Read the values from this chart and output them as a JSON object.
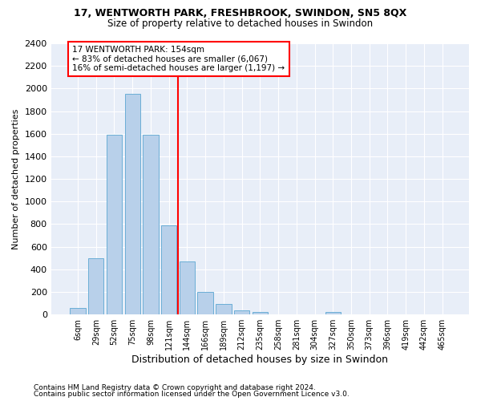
{
  "title1": "17, WENTWORTH PARK, FRESHBROOK, SWINDON, SN5 8QX",
  "title2": "Size of property relative to detached houses in Swindon",
  "xlabel": "Distribution of detached houses by size in Swindon",
  "ylabel": "Number of detached properties",
  "footnote1": "Contains HM Land Registry data © Crown copyright and database right 2024.",
  "footnote2": "Contains public sector information licensed under the Open Government Licence v3.0.",
  "categories": [
    "6sqm",
    "29sqm",
    "52sqm",
    "75sqm",
    "98sqm",
    "121sqm",
    "144sqm",
    "166sqm",
    "189sqm",
    "212sqm",
    "235sqm",
    "258sqm",
    "281sqm",
    "304sqm",
    "327sqm",
    "350sqm",
    "373sqm",
    "396sqm",
    "419sqm",
    "442sqm",
    "465sqm"
  ],
  "values": [
    60,
    500,
    1590,
    1950,
    1590,
    790,
    470,
    200,
    95,
    35,
    25,
    0,
    0,
    0,
    20,
    0,
    0,
    0,
    0,
    0,
    0
  ],
  "bar_color": "#b8d0ea",
  "bar_edge_color": "#6baed6",
  "vline_x": 5.5,
  "vline_color": "red",
  "annotation_text": "17 WENTWORTH PARK: 154sqm\n← 83% of detached houses are smaller (6,067)\n16% of semi-detached houses are larger (1,197) →",
  "box_edge_color": "red",
  "ylim": [
    0,
    2400
  ],
  "yticks": [
    0,
    200,
    400,
    600,
    800,
    1000,
    1200,
    1400,
    1600,
    1800,
    2000,
    2200,
    2400
  ],
  "background_color": "#e8eef8",
  "grid_color": "white"
}
